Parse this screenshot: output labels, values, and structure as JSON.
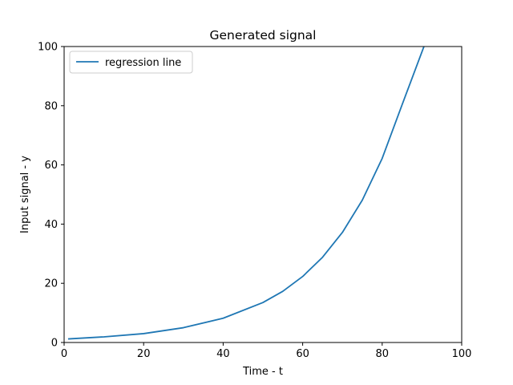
{
  "chart_data": {
    "type": "line",
    "title": "Generated signal",
    "xlabel": "Time - t",
    "ylabel": "Input signal - y",
    "xlim": [
      0,
      100
    ],
    "ylim": [
      0,
      100
    ],
    "xticks": [
      0,
      20,
      40,
      60,
      80,
      100
    ],
    "yticks": [
      0,
      20,
      40,
      60,
      80,
      100
    ],
    "grid": false,
    "legend_position": "upper-left",
    "series": [
      {
        "name": "regression line",
        "color": "#1f77b4",
        "x": [
          1,
          10,
          20,
          30,
          40,
          50,
          55,
          60,
          65,
          70,
          75,
          80,
          85,
          90.5
        ],
        "y": [
          1.2,
          1.9,
          3.0,
          5.0,
          8.2,
          13.5,
          17.3,
          22.3,
          28.8,
          37.2,
          48.1,
          62.2,
          80.3,
          100.0
        ]
      }
    ]
  }
}
